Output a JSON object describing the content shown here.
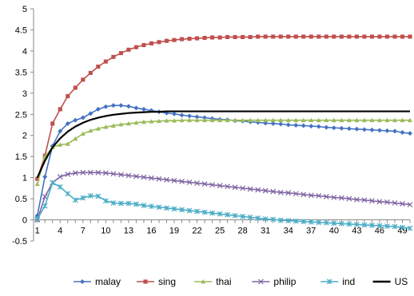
{
  "chart_data": {
    "type": "line",
    "title": "",
    "xlabel": "",
    "ylabel": "",
    "x": [
      1,
      2,
      3,
      4,
      5,
      6,
      7,
      8,
      9,
      10,
      11,
      12,
      13,
      14,
      15,
      16,
      17,
      18,
      19,
      20,
      21,
      22,
      23,
      24,
      25,
      26,
      27,
      28,
      29,
      30,
      31,
      32,
      33,
      34,
      35,
      36,
      37,
      38,
      39,
      40,
      41,
      42,
      43,
      44,
      45,
      46,
      47,
      48,
      49,
      50
    ],
    "xticks": [
      "1",
      "4",
      "7",
      "10",
      "13",
      "16",
      "19",
      "22",
      "25",
      "28",
      "31",
      "34",
      "37",
      "40",
      "43",
      "46",
      "49"
    ],
    "xlim": [
      1,
      50
    ],
    "ylim": [
      -0.5,
      5
    ],
    "yticks": [
      "-0.5",
      "0",
      "0.5",
      "1",
      "1.5",
      "2",
      "2.5",
      "3",
      "3.5",
      "4",
      "4.5",
      "5"
    ],
    "grid": false,
    "legend_position": "bottom",
    "series": [
      {
        "name": "malay",
        "color": "#4472C4",
        "marker": "diamond",
        "values": [
          0.1,
          1.02,
          1.75,
          2.1,
          2.28,
          2.36,
          2.42,
          2.52,
          2.62,
          2.68,
          2.71,
          2.71,
          2.69,
          2.65,
          2.62,
          2.59,
          2.56,
          2.53,
          2.51,
          2.48,
          2.46,
          2.44,
          2.42,
          2.4,
          2.38,
          2.37,
          2.35,
          2.34,
          2.32,
          2.31,
          2.29,
          2.28,
          2.27,
          2.25,
          2.24,
          2.23,
          2.22,
          2.21,
          2.19,
          2.18,
          2.17,
          2.16,
          2.15,
          2.14,
          2.13,
          2.12,
          2.11,
          2.1,
          2.07,
          2.05
        ]
      },
      {
        "name": "sing",
        "color": "#C0504D",
        "marker": "square",
        "values": [
          0.97,
          1.52,
          2.28,
          2.62,
          2.93,
          3.13,
          3.32,
          3.48,
          3.63,
          3.75,
          3.86,
          3.95,
          4.03,
          4.09,
          4.14,
          4.18,
          4.21,
          4.24,
          4.26,
          4.28,
          4.29,
          4.3,
          4.31,
          4.32,
          4.32,
          4.33,
          4.33,
          4.33,
          4.33,
          4.34,
          4.34,
          4.34,
          4.34,
          4.34,
          4.34,
          4.34,
          4.34,
          4.34,
          4.34,
          4.34,
          4.34,
          4.34,
          4.34,
          4.34,
          4.34,
          4.34,
          4.34,
          4.34,
          4.34,
          4.34
        ]
      },
      {
        "name": "thai",
        "color": "#9BBB59",
        "marker": "triangle",
        "values": [
          0.85,
          1.5,
          1.72,
          1.78,
          1.8,
          1.92,
          2.04,
          2.11,
          2.16,
          2.2,
          2.23,
          2.26,
          2.28,
          2.3,
          2.32,
          2.33,
          2.34,
          2.35,
          2.35,
          2.36,
          2.36,
          2.36,
          2.36,
          2.36,
          2.36,
          2.36,
          2.36,
          2.36,
          2.36,
          2.36,
          2.36,
          2.36,
          2.36,
          2.36,
          2.36,
          2.36,
          2.36,
          2.36,
          2.36,
          2.36,
          2.36,
          2.36,
          2.36,
          2.36,
          2.36,
          2.36,
          2.36,
          2.36,
          2.36,
          2.36
        ]
      },
      {
        "name": "philip",
        "color": "#8064A2",
        "marker": "x",
        "values": [
          0.0,
          0.55,
          0.88,
          1.02,
          1.08,
          1.11,
          1.12,
          1.12,
          1.12,
          1.11,
          1.09,
          1.07,
          1.05,
          1.03,
          1.01,
          0.99,
          0.97,
          0.95,
          0.93,
          0.91,
          0.89,
          0.87,
          0.85,
          0.83,
          0.81,
          0.79,
          0.77,
          0.75,
          0.73,
          0.71,
          0.69,
          0.67,
          0.65,
          0.64,
          0.62,
          0.6,
          0.58,
          0.57,
          0.55,
          0.53,
          0.52,
          0.5,
          0.48,
          0.47,
          0.45,
          0.43,
          0.42,
          0.4,
          0.38,
          0.36
        ]
      },
      {
        "name": "ind",
        "color": "#4BACC6",
        "marker": "star",
        "values": [
          0.02,
          0.33,
          0.88,
          0.78,
          0.62,
          0.47,
          0.52,
          0.57,
          0.56,
          0.45,
          0.4,
          0.39,
          0.39,
          0.37,
          0.34,
          0.32,
          0.3,
          0.28,
          0.26,
          0.24,
          0.22,
          0.2,
          0.18,
          0.16,
          0.14,
          0.12,
          0.1,
          0.08,
          0.06,
          0.04,
          0.02,
          0.01,
          -0.01,
          -0.02,
          -0.03,
          -0.04,
          -0.05,
          -0.06,
          -0.07,
          -0.08,
          -0.09,
          -0.1,
          -0.11,
          -0.12,
          -0.13,
          -0.14,
          -0.15,
          -0.16,
          -0.18,
          -0.2
        ]
      },
      {
        "name": "US",
        "color": "#000000",
        "marker": "none",
        "values": [
          1.0,
          1.4,
          1.72,
          1.93,
          2.09,
          2.21,
          2.3,
          2.37,
          2.42,
          2.46,
          2.49,
          2.51,
          2.53,
          2.54,
          2.55,
          2.56,
          2.56,
          2.57,
          2.57,
          2.57,
          2.57,
          2.57,
          2.57,
          2.57,
          2.57,
          2.57,
          2.57,
          2.57,
          2.57,
          2.57,
          2.57,
          2.57,
          2.57,
          2.57,
          2.57,
          2.57,
          2.57,
          2.57,
          2.57,
          2.57,
          2.57,
          2.57,
          2.57,
          2.57,
          2.57,
          2.57,
          2.57,
          2.57,
          2.57,
          2.57
        ]
      }
    ]
  }
}
